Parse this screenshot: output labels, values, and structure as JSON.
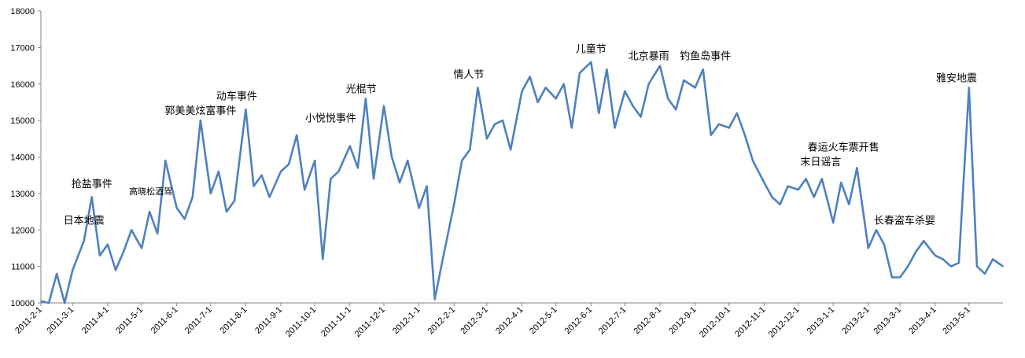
{
  "chart_data": {
    "type": "line",
    "title": "",
    "xlabel": "",
    "ylabel": "",
    "ylim": [
      10000,
      18000
    ],
    "yticks": [
      "10000",
      "11000",
      "12000",
      "13000",
      "14000",
      "15000",
      "16000",
      "17000",
      "18000"
    ],
    "xticks": [
      "2011-2-1",
      "2011-3-1",
      "2011-4-1",
      "2011-5-1",
      "2011-6-1",
      "2011-7-1",
      "2011-8-1",
      "2011-9-1",
      "2011-10-1",
      "2011-11-1",
      "2011-12-1",
      "2012-1-1",
      "2012-2-1",
      "2012-3-1",
      "2012-4-1",
      "2012-5-1",
      "2012-6-1",
      "2012-7-1",
      "2012-8-1",
      "2012-9-1",
      "2012-10-1",
      "2012-11-1",
      "2012-12-1",
      "2013-1-1",
      "2013-2-1",
      "2013-3-1",
      "2013-4-1",
      "2013-5-1"
    ],
    "grid": false,
    "series_color": "#4F81BD",
    "series": [
      {
        "x": [
          "2011-2-1",
          "2011-2-8",
          "2011-2-15",
          "2011-2-22",
          "2011-3-1",
          "2011-3-11",
          "2011-3-18",
          "2011-3-25",
          "2011-4-1",
          "2011-4-8",
          "2011-4-15",
          "2011-4-22",
          "2011-5-1",
          "2011-5-8",
          "2011-5-15",
          "2011-5-22",
          "2011-6-1",
          "2011-6-8",
          "2011-6-15",
          "2011-6-22",
          "2011-7-1",
          "2011-7-8",
          "2011-7-15",
          "2011-7-22",
          "2011-8-1",
          "2011-8-8",
          "2011-8-15",
          "2011-8-22",
          "2011-9-1",
          "2011-9-8",
          "2011-9-15",
          "2011-9-22",
          "2011-10-1",
          "2011-10-8",
          "2011-10-15",
          "2011-10-22",
          "2011-11-1",
          "2011-11-8",
          "2011-11-15",
          "2011-11-22",
          "2011-12-1",
          "2011-12-8",
          "2011-12-15",
          "2011-12-22",
          "2012-1-1",
          "2012-1-8",
          "2012-1-15",
          "2012-1-22",
          "2012-2-1",
          "2012-2-8",
          "2012-2-15",
          "2012-2-22",
          "2012-3-1",
          "2012-3-8",
          "2012-3-15",
          "2012-3-22",
          "2012-4-1",
          "2012-4-8",
          "2012-4-15",
          "2012-4-22",
          "2012-5-1",
          "2012-5-8",
          "2012-5-15",
          "2012-5-22",
          "2012-6-1",
          "2012-6-8",
          "2012-6-15",
          "2012-6-22",
          "2012-7-1",
          "2012-7-8",
          "2012-7-15",
          "2012-7-22",
          "2012-8-1",
          "2012-8-8",
          "2012-8-15",
          "2012-8-22",
          "2012-9-1",
          "2012-9-8",
          "2012-9-15",
          "2012-9-22",
          "2012-10-1",
          "2012-10-8",
          "2012-10-15",
          "2012-10-22",
          "2012-11-1",
          "2012-11-8",
          "2012-11-15",
          "2012-11-22",
          "2012-12-1",
          "2012-12-8",
          "2012-12-15",
          "2012-12-22",
          "2013-1-1",
          "2013-1-8",
          "2013-1-15",
          "2013-1-22",
          "2013-2-1",
          "2013-2-8",
          "2013-2-15",
          "2013-2-22",
          "2013-3-1",
          "2013-3-8",
          "2013-3-15",
          "2013-3-22",
          "2013-4-1",
          "2013-4-8",
          "2013-4-15",
          "2013-4-22",
          "2013-5-1",
          "2013-5-8",
          "2013-5-15",
          "2013-5-22",
          "2013-5-31"
        ],
        "values": [
          10050,
          10000,
          10800,
          10000,
          10900,
          11700,
          12900,
          11300,
          11600,
          10900,
          11400,
          12000,
          11500,
          12500,
          11900,
          13900,
          12600,
          12300,
          12900,
          15000,
          13000,
          13600,
          12500,
          12800,
          15300,
          13200,
          13500,
          12900,
          13600,
          13800,
          14600,
          13100,
          13900,
          11200,
          13400,
          13600,
          14300,
          13700,
          15600,
          13400,
          15400,
          14000,
          13300,
          13900,
          12600,
          13200,
          10100,
          11200,
          12700,
          13900,
          14200,
          15900,
          14500,
          14900,
          15000,
          14200,
          15800,
          16200,
          15500,
          15900,
          15600,
          16000,
          14800,
          16300,
          16600,
          15200,
          16400,
          14800,
          15800,
          15400,
          15100,
          16000,
          16500,
          15600,
          15300,
          16100,
          15900,
          16400,
          14600,
          14900,
          14800,
          15200,
          14600,
          13900,
          13300,
          12900,
          12700,
          13200,
          13100,
          13400,
          12900,
          13400,
          12200,
          13300,
          12700,
          13700,
          11500,
          12000,
          11600,
          10700,
          10700,
          11000,
          11400,
          11700,
          11300,
          11200,
          11000,
          11100,
          15900,
          11000,
          10800,
          11200,
          11000
        ]
      }
    ],
    "annotations": [
      {
        "label": "日本地震",
        "x": "2011-3-11",
        "y": 12000
      },
      {
        "label": "抢盐事件",
        "x": "2011-3-18",
        "y": 13000
      },
      {
        "label": "高晓松酒驾",
        "x": "2011-5-9",
        "y": 12800
      },
      {
        "label": "郭美美炫富事件",
        "x": "2011-6-22",
        "y": 15000
      },
      {
        "label": "动车事件",
        "x": "2011-7-24",
        "y": 15400
      },
      {
        "label": "小悦悦事件",
        "x": "2011-10-15",
        "y": 14800
      },
      {
        "label": "光棍节",
        "x": "2011-11-11",
        "y": 15600
      },
      {
        "label": "情人节",
        "x": "2012-2-14",
        "y": 16000
      },
      {
        "label": "儿童节",
        "x": "2012-6-1",
        "y": 16700
      },
      {
        "label": "北京暴雨",
        "x": "2012-7-22",
        "y": 16500
      },
      {
        "label": "钓鱼岛事件",
        "x": "2012-9-10",
        "y": 16500
      },
      {
        "label": "末日谣言",
        "x": "2012-12-21",
        "y": 13600
      },
      {
        "label": "春运火车票开售",
        "x": "2013-1-10",
        "y": 14000
      },
      {
        "label": "长春盗车杀婴",
        "x": "2013-3-5",
        "y": 12000
      },
      {
        "label": "雅安地震",
        "x": "2013-4-20",
        "y": 15900
      }
    ]
  }
}
